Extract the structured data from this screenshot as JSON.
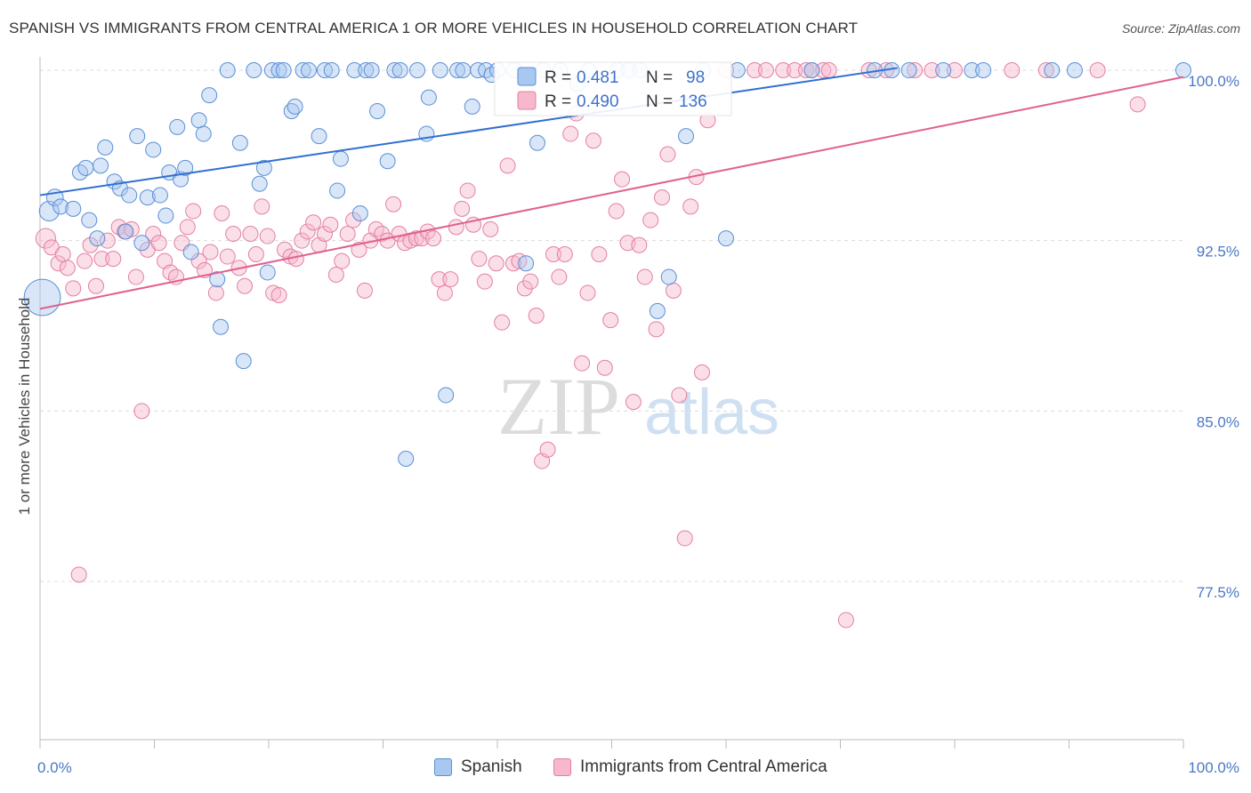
{
  "title": "SPANISH VS IMMIGRANTS FROM CENTRAL AMERICA 1 OR MORE VEHICLES IN HOUSEHOLD CORRELATION CHART",
  "source": "Source: ZipAtlas.com",
  "watermark": {
    "zip": "ZIP",
    "atlas": "atlas"
  },
  "colors": {
    "blue_fill": "#a8c8f0",
    "blue_stroke": "#5b8fd6",
    "blue_line": "#2f6fd0",
    "pink_fill": "#f7b8cc",
    "pink_stroke": "#e47fa2",
    "pink_line": "#e0608f",
    "tick_text": "#4a78c8",
    "grid": "#dcdcdc"
  },
  "legend_stats": [
    {
      "r_label": "R =",
      "r_value": "0.481",
      "n_label": "N =",
      "n_value": "98"
    },
    {
      "r_label": "R =",
      "r_value": "0.490",
      "n_label": "N =",
      "n_value": "136"
    }
  ],
  "bottom_legend": [
    "Spanish",
    "Immigrants from Central America"
  ],
  "chart_data": {
    "type": "scatter",
    "title": "SPANISH VS IMMIGRANTS FROM CENTRAL AMERICA 1 OR MORE VEHICLES IN HOUSEHOLD CORRELATION CHART",
    "xlabel": "",
    "ylabel": "1 or more Vehicles in Household",
    "xlim": [
      0,
      100
    ],
    "ylim": [
      72,
      100.6
    ],
    "x_tick_labels": [
      "0.0%",
      "100.0%"
    ],
    "y_ticks": [
      77.5,
      85.0,
      92.5,
      100.0
    ],
    "y_tick_labels": [
      "77.5%",
      "85.0%",
      "92.5%",
      "100.0%"
    ],
    "grid": true,
    "legend_placement": "top-center",
    "series": [
      {
        "name": "Spanish",
        "r": 0.481,
        "n": 98,
        "trend": [
          [
            0,
            94.5
          ],
          [
            75,
            100.1
          ]
        ],
        "points": [
          [
            0.2,
            90.0,
            2.4
          ],
          [
            0.8,
            93.8,
            1.3
          ],
          [
            1.3,
            94.4,
            1.1
          ],
          [
            1.8,
            94.0,
            1.0
          ],
          [
            2.9,
            93.9,
            1.0
          ],
          [
            3.5,
            95.5,
            1.0
          ],
          [
            4.0,
            95.7,
            1.0
          ],
          [
            4.3,
            93.4,
            1.0
          ],
          [
            5.0,
            92.6,
            1.0
          ],
          [
            5.3,
            95.8,
            1.0
          ],
          [
            5.7,
            96.6,
            1.0
          ],
          [
            6.5,
            95.1,
            1.0
          ],
          [
            7.0,
            94.8,
            1.0
          ],
          [
            7.5,
            92.9,
            1.0
          ],
          [
            7.8,
            94.5,
            1.0
          ],
          [
            8.5,
            97.1,
            1.0
          ],
          [
            8.9,
            92.4,
            1.0
          ],
          [
            9.4,
            94.4,
            1.0
          ],
          [
            9.9,
            96.5,
            1.0
          ],
          [
            10.5,
            94.5,
            1.0
          ],
          [
            11.0,
            93.6,
            1.0
          ],
          [
            11.3,
            95.5,
            1.0
          ],
          [
            12.0,
            97.5,
            1.0
          ],
          [
            12.3,
            95.2,
            1.0
          ],
          [
            12.7,
            95.7,
            1.0
          ],
          [
            13.2,
            92.0,
            1.0
          ],
          [
            13.9,
            97.8,
            1.0
          ],
          [
            14.3,
            97.2,
            1.0
          ],
          [
            14.8,
            98.9,
            1.0
          ],
          [
            15.5,
            90.8,
            1.0
          ],
          [
            15.8,
            88.7,
            1.0
          ],
          [
            16.4,
            100.0,
            1.0
          ],
          [
            17.5,
            96.8,
            1.0
          ],
          [
            17.8,
            87.2,
            1.0
          ],
          [
            18.7,
            100.0,
            1.0
          ],
          [
            19.2,
            95.0,
            1.0
          ],
          [
            19.6,
            95.7,
            1.0
          ],
          [
            19.9,
            91.1,
            1.0
          ],
          [
            20.3,
            100.0,
            1.0
          ],
          [
            20.9,
            100.0,
            1.0
          ],
          [
            21.3,
            100.0,
            1.0
          ],
          [
            22.0,
            98.2,
            1.0
          ],
          [
            22.3,
            98.4,
            1.0
          ],
          [
            23.0,
            100.0,
            1.0
          ],
          [
            23.5,
            100.0,
            1.0
          ],
          [
            24.4,
            97.1,
            1.0
          ],
          [
            24.9,
            100.0,
            1.0
          ],
          [
            25.5,
            100.0,
            1.0
          ],
          [
            26.0,
            94.7,
            1.0
          ],
          [
            26.3,
            96.1,
            1.0
          ],
          [
            27.5,
            100.0,
            1.0
          ],
          [
            28.0,
            93.7,
            1.0
          ],
          [
            28.5,
            100.0,
            1.0
          ],
          [
            29.0,
            100.0,
            1.0
          ],
          [
            29.5,
            98.2,
            1.0
          ],
          [
            30.4,
            96.0,
            1.0
          ],
          [
            31.0,
            100.0,
            1.0
          ],
          [
            31.5,
            100.0,
            1.0
          ],
          [
            32.0,
            82.9,
            1.0
          ],
          [
            33.0,
            100.0,
            1.0
          ],
          [
            33.8,
            97.2,
            1.0
          ],
          [
            34.0,
            98.8,
            1.0
          ],
          [
            35.0,
            100.0,
            1.0
          ],
          [
            35.5,
            85.7,
            1.0
          ],
          [
            36.5,
            100.0,
            1.0
          ],
          [
            37.0,
            100.0,
            1.0
          ],
          [
            37.8,
            98.4,
            1.0
          ],
          [
            38.3,
            100.0,
            1.0
          ],
          [
            39.0,
            100.0,
            1.0
          ],
          [
            39.5,
            99.8,
            1.0
          ],
          [
            40.0,
            100.0,
            1.0
          ],
          [
            41.5,
            100.0,
            1.0
          ],
          [
            42.5,
            91.5,
            1.0
          ],
          [
            43.5,
            96.8,
            1.0
          ],
          [
            44.0,
            100.0,
            1.0
          ],
          [
            45.5,
            100.0,
            1.0
          ],
          [
            47.0,
            99.4,
            1.0
          ],
          [
            48.0,
            100.0,
            1.0
          ],
          [
            50.5,
            100.0,
            1.0
          ],
          [
            51.5,
            100.0,
            1.0
          ],
          [
            52.5,
            100.0,
            1.0
          ],
          [
            54.0,
            89.4,
            1.0
          ],
          [
            55.0,
            90.9,
            1.0
          ],
          [
            56.5,
            97.1,
            1.0
          ],
          [
            58.0,
            100.0,
            1.0
          ],
          [
            60.0,
            92.6,
            1.0
          ],
          [
            61.0,
            100.0,
            1.0
          ],
          [
            67.5,
            100.0,
            1.0
          ],
          [
            73.0,
            100.0,
            1.0
          ],
          [
            74.5,
            100.0,
            1.0
          ],
          [
            76.0,
            100.0,
            1.0
          ],
          [
            79.0,
            100.0,
            1.0
          ],
          [
            81.5,
            100.0,
            1.0
          ],
          [
            82.5,
            100.0,
            1.0
          ],
          [
            88.5,
            100.0,
            1.0
          ],
          [
            90.5,
            100.0,
            1.0
          ],
          [
            100.0,
            100.0,
            1.0
          ]
        ]
      },
      {
        "name": "Immigrants from Central America",
        "r": 0.49,
        "n": 136,
        "trend": [
          [
            0,
            89.5
          ],
          [
            100,
            99.7
          ]
        ],
        "points": [
          [
            0.5,
            92.6,
            1.3
          ],
          [
            1.0,
            92.2,
            1.0
          ],
          [
            1.6,
            91.5,
            1.0
          ],
          [
            2.0,
            91.9,
            1.0
          ],
          [
            2.4,
            91.3,
            1.0
          ],
          [
            2.9,
            90.4,
            1.0
          ],
          [
            3.4,
            77.8,
            1.0
          ],
          [
            3.9,
            91.6,
            1.0
          ],
          [
            4.4,
            92.3,
            1.0
          ],
          [
            4.9,
            90.5,
            1.0
          ],
          [
            5.4,
            91.7,
            1.0
          ],
          [
            5.9,
            92.5,
            1.0
          ],
          [
            6.4,
            91.7,
            1.0
          ],
          [
            6.9,
            93.1,
            1.0
          ],
          [
            7.4,
            92.9,
            1.0
          ],
          [
            8.0,
            93.0,
            1.0
          ],
          [
            8.4,
            90.9,
            1.0
          ],
          [
            8.9,
            85.0,
            1.0
          ],
          [
            9.4,
            92.1,
            1.0
          ],
          [
            9.9,
            92.8,
            1.0
          ],
          [
            10.4,
            92.4,
            1.0
          ],
          [
            10.9,
            91.6,
            1.0
          ],
          [
            11.4,
            91.1,
            1.0
          ],
          [
            11.9,
            90.9,
            1.0
          ],
          [
            12.4,
            92.4,
            1.0
          ],
          [
            12.9,
            93.1,
            1.0
          ],
          [
            13.4,
            93.8,
            1.0
          ],
          [
            13.9,
            91.6,
            1.0
          ],
          [
            14.4,
            91.2,
            1.0
          ],
          [
            14.9,
            92.0,
            1.0
          ],
          [
            15.4,
            90.2,
            1.0
          ],
          [
            15.9,
            93.7,
            1.0
          ],
          [
            16.4,
            91.8,
            1.0
          ],
          [
            16.9,
            92.8,
            1.0
          ],
          [
            17.4,
            91.3,
            1.0
          ],
          [
            17.9,
            90.5,
            1.0
          ],
          [
            18.4,
            92.8,
            1.0
          ],
          [
            18.9,
            91.9,
            1.0
          ],
          [
            19.4,
            94.0,
            1.0
          ],
          [
            19.9,
            92.7,
            1.0
          ],
          [
            20.4,
            90.2,
            1.0
          ],
          [
            20.9,
            90.1,
            1.0
          ],
          [
            21.4,
            92.1,
            1.0
          ],
          [
            21.9,
            91.8,
            1.0
          ],
          [
            22.4,
            91.7,
            1.0
          ],
          [
            22.9,
            92.5,
            1.0
          ],
          [
            23.4,
            92.9,
            1.0
          ],
          [
            23.9,
            93.3,
            1.0
          ],
          [
            24.4,
            92.3,
            1.0
          ],
          [
            24.9,
            92.8,
            1.0
          ],
          [
            25.4,
            93.2,
            1.0
          ],
          [
            25.9,
            91.0,
            1.0
          ],
          [
            26.4,
            91.6,
            1.0
          ],
          [
            26.9,
            92.8,
            1.0
          ],
          [
            27.4,
            93.4,
            1.0
          ],
          [
            27.9,
            92.1,
            1.0
          ],
          [
            28.4,
            90.3,
            1.0
          ],
          [
            28.9,
            92.5,
            1.0
          ],
          [
            29.4,
            93.0,
            1.0
          ],
          [
            29.9,
            92.8,
            1.0
          ],
          [
            30.4,
            92.5,
            1.0
          ],
          [
            30.9,
            94.1,
            1.0
          ],
          [
            31.4,
            92.8,
            1.0
          ],
          [
            31.9,
            92.4,
            1.0
          ],
          [
            32.4,
            92.5,
            1.0
          ],
          [
            32.9,
            92.6,
            1.0
          ],
          [
            33.4,
            92.6,
            1.0
          ],
          [
            33.9,
            92.9,
            1.0
          ],
          [
            34.4,
            92.6,
            1.0
          ],
          [
            34.9,
            90.8,
            1.0
          ],
          [
            35.4,
            90.2,
            1.0
          ],
          [
            35.9,
            90.8,
            1.0
          ],
          [
            36.4,
            93.1,
            1.0
          ],
          [
            36.9,
            93.9,
            1.0
          ],
          [
            37.4,
            94.7,
            1.0
          ],
          [
            37.9,
            93.2,
            1.0
          ],
          [
            38.4,
            91.7,
            1.0
          ],
          [
            38.9,
            90.7,
            1.0
          ],
          [
            39.4,
            93.0,
            1.0
          ],
          [
            39.9,
            91.5,
            1.0
          ],
          [
            40.4,
            88.9,
            1.0
          ],
          [
            40.9,
            95.8,
            1.0
          ],
          [
            41.4,
            91.5,
            1.0
          ],
          [
            41.9,
            91.6,
            1.0
          ],
          [
            42.4,
            90.4,
            1.0
          ],
          [
            42.9,
            90.7,
            1.0
          ],
          [
            43.4,
            89.2,
            1.0
          ],
          [
            43.9,
            82.8,
            1.0
          ],
          [
            44.4,
            83.3,
            1.0
          ],
          [
            44.9,
            91.9,
            1.0
          ],
          [
            45.4,
            90.9,
            1.0
          ],
          [
            45.9,
            91.9,
            1.0
          ],
          [
            46.4,
            97.2,
            1.0
          ],
          [
            46.9,
            98.1,
            1.0
          ],
          [
            47.4,
            87.1,
            1.0
          ],
          [
            47.9,
            90.2,
            1.0
          ],
          [
            48.4,
            96.9,
            1.0
          ],
          [
            48.9,
            91.9,
            1.0
          ],
          [
            49.4,
            86.9,
            1.0
          ],
          [
            49.9,
            89.0,
            1.0
          ],
          [
            50.4,
            93.8,
            1.0
          ],
          [
            50.9,
            95.2,
            1.0
          ],
          [
            51.4,
            92.4,
            1.0
          ],
          [
            51.9,
            85.4,
            1.0
          ],
          [
            52.4,
            92.3,
            1.0
          ],
          [
            52.9,
            90.9,
            1.0
          ],
          [
            53.4,
            93.4,
            1.0
          ],
          [
            53.9,
            88.6,
            1.0
          ],
          [
            54.4,
            94.4,
            1.0
          ],
          [
            54.9,
            96.3,
            1.0
          ],
          [
            55.4,
            90.3,
            1.0
          ],
          [
            55.9,
            85.7,
            1.0
          ],
          [
            56.4,
            79.4,
            1.0
          ],
          [
            56.9,
            94.0,
            1.0
          ],
          [
            57.4,
            95.3,
            1.0
          ],
          [
            57.9,
            86.7,
            1.0
          ],
          [
            58.4,
            97.8,
            1.0
          ],
          [
            60.0,
            100.0,
            1.0
          ],
          [
            62.5,
            100.0,
            1.0
          ],
          [
            63.5,
            100.0,
            1.0
          ],
          [
            65.0,
            100.0,
            1.0
          ],
          [
            66.0,
            100.0,
            1.0
          ],
          [
            67.0,
            100.0,
            1.0
          ],
          [
            67.5,
            100.0,
            1.0
          ],
          [
            68.5,
            100.0,
            1.0
          ],
          [
            69.0,
            100.0,
            1.0
          ],
          [
            70.5,
            75.8,
            1.0
          ],
          [
            72.5,
            100.0,
            1.0
          ],
          [
            74.0,
            100.0,
            1.0
          ],
          [
            76.5,
            100.0,
            1.0
          ],
          [
            78.0,
            100.0,
            1.0
          ],
          [
            80.0,
            100.0,
            1.0
          ],
          [
            85.0,
            100.0,
            1.0
          ],
          [
            88.0,
            100.0,
            1.0
          ],
          [
            92.5,
            100.0,
            1.0
          ],
          [
            96.0,
            98.5,
            1.0
          ]
        ]
      }
    ]
  }
}
